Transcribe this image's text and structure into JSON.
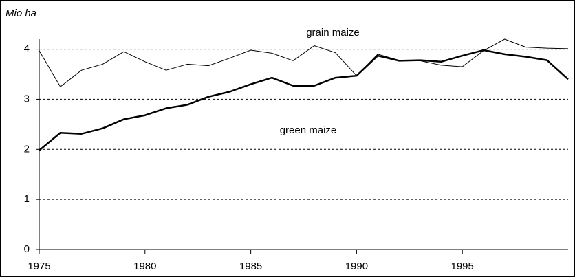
{
  "chart_data": {
    "type": "line",
    "y_label": "Mio ha",
    "x": [
      1975,
      1976,
      1977,
      1978,
      1979,
      1980,
      1981,
      1982,
      1983,
      1984,
      1985,
      1986,
      1987,
      1988,
      1989,
      1990,
      1991,
      1992,
      1993,
      1994,
      1995,
      1996,
      1997,
      1998,
      1999,
      2000
    ],
    "series": [
      {
        "name": "grain maize",
        "color": "#000000",
        "width": 1,
        "values": [
          3.97,
          3.25,
          3.58,
          3.7,
          3.95,
          3.75,
          3.58,
          3.7,
          3.67,
          3.82,
          3.98,
          3.92,
          3.77,
          4.07,
          3.93,
          3.47,
          3.9,
          3.78,
          3.77,
          3.68,
          3.65,
          3.97,
          4.2,
          4.04,
          4.02,
          4.01
        ]
      },
      {
        "name": "green maize",
        "color": "#000000",
        "width": 2.5,
        "values": [
          1.98,
          2.33,
          2.31,
          2.42,
          2.6,
          2.68,
          2.82,
          2.89,
          3.05,
          3.15,
          3.3,
          3.43,
          3.27,
          3.27,
          3.43,
          3.47,
          3.87,
          3.77,
          3.78,
          3.75,
          3.87,
          3.98,
          3.9,
          3.85,
          3.78,
          3.4
        ]
      }
    ],
    "xlim": [
      1975,
      2000
    ],
    "xticks": [
      1975,
      1980,
      1985,
      1990,
      1995
    ],
    "ylim": [
      0,
      4.2
    ],
    "yticks": [
      0,
      1,
      2,
      3,
      4
    ],
    "grid": true
  }
}
